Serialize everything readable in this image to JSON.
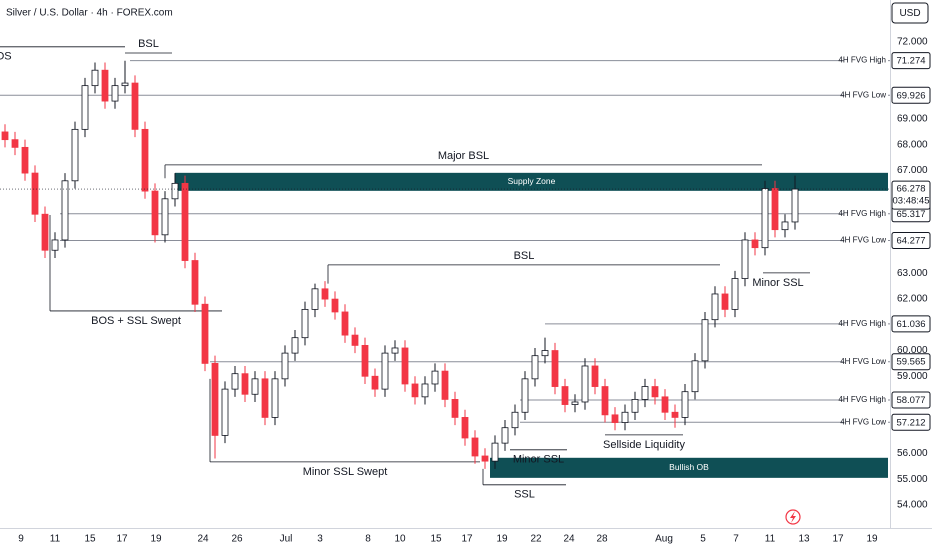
{
  "header": {
    "title": "Silver / U.S. Dollar · 4h · FOREX.com",
    "currency": "USD"
  },
  "chart_data": {
    "type": "candlestick",
    "xlim": [
      -0.5,
      88.5
    ],
    "xticks": [
      {
        "value": 1.6,
        "label": "9"
      },
      {
        "value": 5,
        "label": "11"
      },
      {
        "value": 8.5,
        "label": "15"
      },
      {
        "value": 11.7,
        "label": "17"
      },
      {
        "value": 15.1,
        "label": "19"
      },
      {
        "value": 19.8,
        "label": "24"
      },
      {
        "value": 23.2,
        "label": "26"
      },
      {
        "value": 28.1,
        "label": "Jul"
      },
      {
        "value": 31.5,
        "label": "3"
      },
      {
        "value": 36.3,
        "label": "8"
      },
      {
        "value": 39.5,
        "label": "10"
      },
      {
        "value": 43.1,
        "label": "15"
      },
      {
        "value": 46.2,
        "label": "17"
      },
      {
        "value": 49.7,
        "label": "19"
      },
      {
        "value": 53.1,
        "label": "22"
      },
      {
        "value": 56.4,
        "label": "24"
      },
      {
        "value": 59.7,
        "label": "28"
      },
      {
        "value": 65.9,
        "label": "Aug"
      },
      {
        "value": 69.8,
        "label": "5"
      },
      {
        "value": 73.1,
        "label": "7"
      },
      {
        "value": 76.5,
        "label": "11"
      },
      {
        "value": 79.9,
        "label": "13"
      },
      {
        "value": 83.3,
        "label": "17"
      },
      {
        "value": 86.7,
        "label": "19"
      }
    ],
    "ylim": [
      53.1,
      73.63
    ],
    "yticks": [
      {
        "value": 72,
        "label": "72.000"
      },
      {
        "value": 69,
        "label": "69.000"
      },
      {
        "value": 68,
        "label": "68.000"
      },
      {
        "value": 67,
        "label": "67.000"
      },
      {
        "value": 63,
        "label": "63.000"
      },
      {
        "value": 62,
        "label": "62.000"
      },
      {
        "value": 60,
        "label": "60.000"
      },
      {
        "value": 59,
        "label": "59.000"
      },
      {
        "value": 56,
        "label": "56.000"
      },
      {
        "value": 55,
        "label": "55.000"
      },
      {
        "value": 54,
        "label": "54.000"
      }
    ],
    "colors": {
      "up": "#ffffff",
      "down": "#f23645",
      "edge": "#131722",
      "zone": "#0f4f55",
      "line": "#8a8e99"
    },
    "ohlc": [
      [
        68.5,
        68.8,
        67.9,
        68.2
      ],
      [
        68.2,
        68.5,
        67.6,
        67.9
      ],
      [
        67.9,
        68.2,
        66.6,
        66.9
      ],
      [
        66.9,
        67.2,
        65.0,
        65.3
      ],
      [
        65.3,
        65.6,
        63.6,
        63.9
      ],
      [
        63.9,
        64.6,
        63.6,
        64.3
      ],
      [
        64.3,
        66.9,
        64.0,
        66.6
      ],
      [
        66.6,
        68.9,
        66.3,
        68.6
      ],
      [
        68.6,
        70.6,
        68.3,
        70.3
      ],
      [
        70.3,
        71.2,
        70.0,
        70.9
      ],
      [
        70.9,
        71.2,
        69.4,
        69.7
      ],
      [
        69.7,
        70.6,
        69.4,
        70.3
      ],
      [
        70.3,
        71.27,
        70.0,
        70.4
      ],
      [
        70.4,
        70.7,
        68.3,
        68.6
      ],
      [
        68.6,
        68.9,
        65.9,
        66.2
      ],
      [
        66.2,
        66.5,
        64.2,
        64.5
      ],
      [
        64.5,
        66.2,
        64.2,
        65.9
      ],
      [
        65.9,
        66.9,
        65.6,
        66.5
      ],
      [
        66.5,
        66.8,
        63.2,
        63.5
      ],
      [
        63.5,
        63.8,
        61.5,
        61.8
      ],
      [
        61.8,
        62.1,
        59.2,
        59.5
      ],
      [
        59.5,
        59.8,
        55.8,
        56.7
      ],
      [
        56.7,
        58.8,
        56.4,
        58.5
      ],
      [
        58.5,
        59.4,
        58.2,
        59.1
      ],
      [
        59.1,
        59.4,
        58.0,
        58.3
      ],
      [
        58.3,
        59.2,
        58.0,
        58.9
      ],
      [
        58.9,
        59.2,
        57.1,
        57.4
      ],
      [
        57.4,
        59.2,
        57.1,
        58.9
      ],
      [
        58.9,
        60.2,
        58.6,
        59.9
      ],
      [
        59.9,
        60.8,
        59.6,
        60.5
      ],
      [
        60.5,
        61.9,
        60.2,
        61.6
      ],
      [
        61.6,
        62.6,
        61.3,
        62.4
      ],
      [
        62.4,
        62.7,
        61.7,
        62.0
      ],
      [
        62.0,
        62.3,
        61.2,
        61.5
      ],
      [
        61.5,
        61.8,
        60.3,
        60.6
      ],
      [
        60.6,
        60.9,
        59.9,
        60.2
      ],
      [
        60.2,
        60.5,
        58.7,
        59.0
      ],
      [
        59.0,
        59.3,
        58.2,
        58.5
      ],
      [
        58.5,
        60.2,
        58.2,
        59.9
      ],
      [
        59.9,
        60.4,
        59.6,
        60.1
      ],
      [
        60.1,
        60.4,
        58.4,
        58.7
      ],
      [
        58.7,
        59.0,
        57.9,
        58.2
      ],
      [
        58.2,
        59.0,
        57.9,
        58.7
      ],
      [
        58.7,
        59.5,
        58.4,
        59.2
      ],
      [
        59.2,
        59.5,
        57.8,
        58.1
      ],
      [
        58.1,
        58.4,
        57.1,
        57.4
      ],
      [
        57.4,
        57.7,
        56.3,
        56.6
      ],
      [
        56.6,
        56.9,
        55.6,
        55.9
      ],
      [
        55.9,
        56.2,
        55.4,
        55.7
      ],
      [
        55.7,
        56.7,
        55.4,
        56.4
      ],
      [
        56.4,
        57.3,
        56.1,
        57.0
      ],
      [
        57.0,
        57.9,
        56.7,
        57.6
      ],
      [
        57.6,
        59.2,
        57.3,
        58.9
      ],
      [
        58.9,
        60.1,
        58.6,
        59.8
      ],
      [
        59.8,
        60.5,
        59.5,
        60.0
      ],
      [
        60.0,
        60.3,
        58.3,
        58.6
      ],
      [
        58.6,
        58.9,
        57.6,
        57.9
      ],
      [
        57.9,
        58.3,
        57.6,
        58.0
      ],
      [
        58.0,
        59.7,
        57.7,
        59.4
      ],
      [
        59.4,
        59.7,
        58.3,
        58.6
      ],
      [
        58.6,
        58.9,
        57.2,
        57.5
      ],
      [
        57.5,
        57.8,
        56.9,
        57.2
      ],
      [
        57.2,
        57.9,
        56.9,
        57.6
      ],
      [
        57.6,
        58.4,
        57.3,
        58.1
      ],
      [
        58.1,
        58.9,
        57.8,
        58.6
      ],
      [
        58.6,
        58.9,
        57.9,
        58.2
      ],
      [
        58.2,
        58.5,
        57.3,
        57.6
      ],
      [
        57.6,
        57.9,
        57.0,
        57.4
      ],
      [
        57.4,
        58.7,
        57.1,
        58.4
      ],
      [
        58.4,
        59.9,
        58.1,
        59.6
      ],
      [
        59.6,
        61.5,
        59.3,
        61.2
      ],
      [
        61.2,
        62.5,
        60.9,
        62.2
      ],
      [
        62.2,
        62.5,
        61.3,
        61.6
      ],
      [
        61.6,
        63.1,
        61.3,
        62.8
      ],
      [
        62.8,
        64.6,
        62.5,
        64.3
      ],
      [
        64.3,
        64.6,
        63.7,
        64.0
      ],
      [
        64.0,
        66.6,
        63.7,
        66.3
      ],
      [
        66.3,
        66.6,
        64.4,
        64.7
      ],
      [
        64.7,
        65.3,
        64.4,
        65.0
      ],
      [
        65.0,
        66.8,
        64.7,
        66.278
      ]
    ],
    "last_price": 66.278,
    "countdown": "03:48:45",
    "levels": [
      {
        "name": "4H FVG High",
        "value": 71.274,
        "start": 12.5
      },
      {
        "name": "4H FVG Low",
        "value": 69.926,
        "start": -0.5
      },
      {
        "name": "4H FVG High",
        "value": 65.317,
        "start": 5.5
      },
      {
        "name": "4H FVG Low",
        "value": 64.277,
        "start": 5.5
      },
      {
        "name": "4H FVG High",
        "value": 61.036,
        "start": 54.0
      },
      {
        "name": "4H FVG Low",
        "value": 59.565,
        "start": 20.5
      },
      {
        "name": "4H FVG High",
        "value": 58.077,
        "start": 51.5
      },
      {
        "name": "4H FVG Low",
        "value": 57.212,
        "start": 51.5
      }
    ],
    "zones": [
      {
        "name": "Supply Zone",
        "low": 66.21,
        "high": 66.91,
        "start": 17.0
      },
      {
        "name": "Bullish OB",
        "low": 55.05,
        "high": 55.83,
        "start": 48.5
      }
    ],
    "annotations": [
      {
        "text": "BOS",
        "value": 71.81,
        "start": -0.5,
        "end": 12.0,
        "label": "below",
        "label_at": -0.5
      },
      {
        "text": "BSL",
        "value": 71.57,
        "start": 12.0,
        "end": 16.7,
        "label": "above"
      },
      {
        "text": "Major BSL",
        "value": 67.22,
        "start": 16.0,
        "end": 75.7,
        "label": "above",
        "drop": 66.7
      },
      {
        "text": "BSL",
        "value": 63.33,
        "start": 32.3,
        "end": 71.5,
        "label": "above",
        "drop": 62.6
      },
      {
        "text": "BOS + SSL Swept",
        "value": 61.54,
        "start": 4.5,
        "end": 21.7,
        "label": "below",
        "drop": 65.27
      },
      {
        "text": "Minor SSL",
        "value": 63.02,
        "start": 75.8,
        "end": 80.5,
        "label": "below",
        "label_at": 77.3
      },
      {
        "text": "Minor SSL Swept",
        "value": 55.67,
        "start": 20.5,
        "end": 47.5,
        "label": "below",
        "drop": 58.9
      },
      {
        "text": "Minor SSL",
        "value": 56.14,
        "start": 50.5,
        "end": 56.2,
        "label": "below"
      },
      {
        "text": "Sellside Liquidity",
        "value": 56.72,
        "start": 60.0,
        "end": 67.8,
        "label": "below"
      },
      {
        "text": "SSL",
        "value": 54.78,
        "start": 47.8,
        "end": 56.1,
        "label": "below",
        "drop": 55.4
      }
    ]
  }
}
